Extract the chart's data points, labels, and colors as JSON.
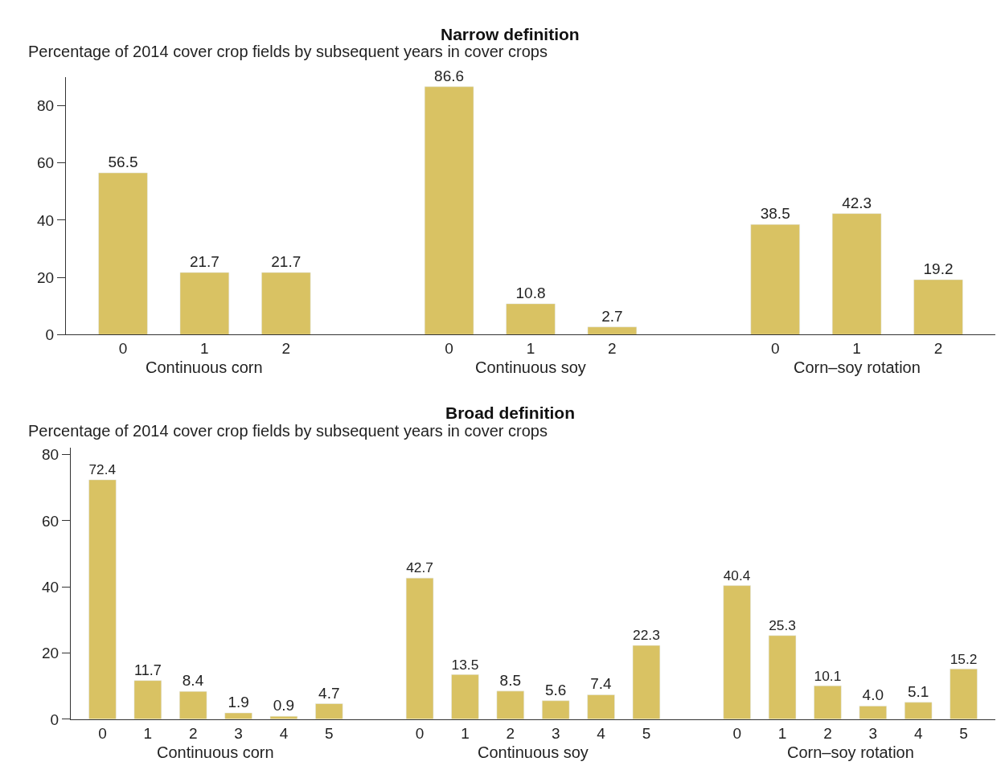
{
  "chart_data": [
    {
      "type": "bar",
      "title": "Narrow definition",
      "subtitle": "Percentage of 2014 cover crop fields by subsequent years in cover crops",
      "categories": [
        "0",
        "1",
        "2",
        null,
        "0",
        "1",
        "2",
        null,
        "0",
        "1",
        "2"
      ],
      "values": [
        56.5,
        21.7,
        21.7,
        null,
        86.6,
        10.8,
        2.7,
        null,
        38.5,
        42.3,
        19.2
      ],
      "color": "#d9c263",
      "ylim": [
        0,
        90
      ],
      "yticks": [
        0,
        20,
        40,
        60,
        80
      ],
      "data_labels": true,
      "annotations": [
        "Continuous corn",
        "Continuous soy",
        "Corn–soy rotation"
      ]
    },
    {
      "type": "bar",
      "title": "Broad definition",
      "subtitle": "Percentage of 2014 cover crop fields by subsequent years in cover crops",
      "categories": [
        "0",
        "1",
        "2",
        "3",
        "4",
        "5",
        null,
        "0",
        "1",
        "2",
        "3",
        "4",
        "5",
        null,
        "0",
        "1",
        "2",
        "3",
        "4",
        "5"
      ],
      "values": [
        72.4,
        11.7,
        8.4,
        1.9,
        0.9,
        4.7,
        null,
        42.7,
        13.5,
        8.5,
        5.6,
        7.4,
        22.3,
        null,
        40.4,
        25.3,
        10.1,
        4.0,
        5.1,
        15.2
      ],
      "value_labels": [
        "72.4",
        "11.7",
        "8.4",
        "1.9",
        "0.9",
        "4.7",
        null,
        "42.7",
        "13.5",
        "8.5",
        "5.6",
        "7.4",
        "22.3",
        null,
        "40.4",
        "25.3",
        "10.1",
        "4.0",
        "5.1",
        "15.2"
      ],
      "color": "#d9c263",
      "ylim": [
        0,
        82
      ],
      "yticks": [
        0,
        20,
        40,
        60,
        80
      ],
      "annotations": [
        "Continuous corn",
        "Continuous soy",
        "Corn–soy rotation"
      ]
    }
  ]
}
